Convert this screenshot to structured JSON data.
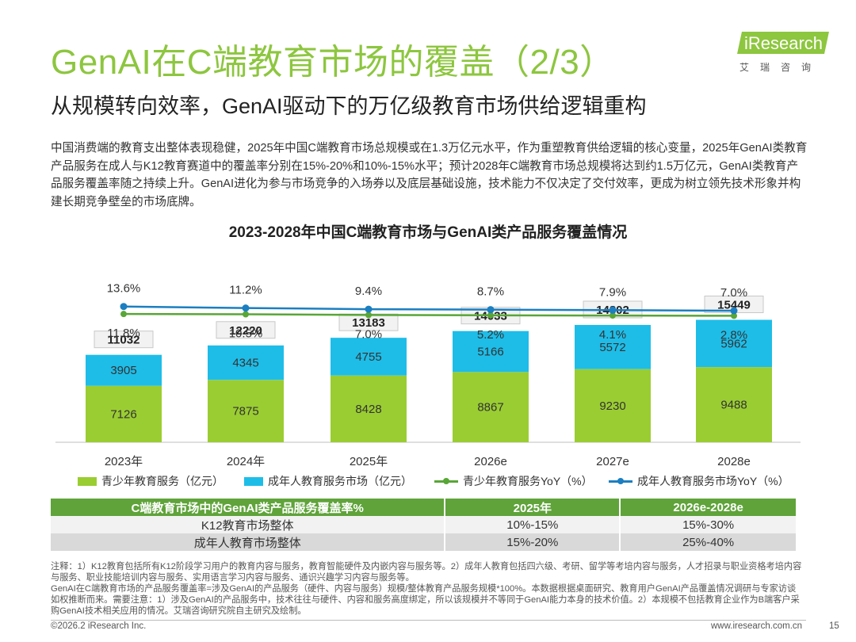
{
  "header": {
    "title": "GenAI在C端教育市场的覆盖（2/3）",
    "subtitle": "从规模转向效率，GenAI驱动下的万亿级教育市场供给逻辑重构"
  },
  "logo": {
    "text_i": "i",
    "text_main": "Research",
    "sub": "艾瑞咨询"
  },
  "body_text": "中国消费端的教育支出整体表现稳健，2025年中国C端教育市场总规模或在1.3万亿元水平，作为重塑教育供给逻辑的核心变量，2025年GenAI类教育产品服务在成人与K12教育赛道中的覆盖率分别在15%-20%和10%-15%水平；预计2028年C端教育市场总规模将达到约1.5万亿元，GenAI类教育产品服务覆盖率随之持续上升。GenAI进化为参与市场竞争的入场券以及底层基础设施，技术能力不仅决定了交付效率，更成为树立领先技术形象并构建长期竞争壁垒的市场底牌。",
  "chart_data": {
    "type": "bar",
    "title": "2023-2028年中国C端教育市场与GenAI类产品服务覆盖情况",
    "categories": [
      "2023年",
      "2024年",
      "2025年",
      "2026e",
      "2027e",
      "2028e"
    ],
    "series": [
      {
        "name": "青少年教育服务（亿元）",
        "kind": "bar",
        "color": "#9acd32",
        "values": [
          7126,
          7875,
          8428,
          8867,
          9230,
          9488
        ]
      },
      {
        "name": "成年人教育服务市场（亿元）",
        "kind": "bar",
        "color": "#1ebde8",
        "values": [
          3905,
          4345,
          4755,
          5166,
          5572,
          5962
        ]
      },
      {
        "name": "青少年教育服务YoY（%）",
        "kind": "line",
        "color": "#58a637",
        "values": [
          11.8,
          10.5,
          7.0,
          5.2,
          4.1,
          2.8
        ],
        "labels": [
          "11.8%",
          "10.5%",
          "7.0%",
          "5.2%",
          "4.1%",
          "2.8%"
        ]
      },
      {
        "name": "成年人教育服务市场YoY（%）",
        "kind": "line",
        "color": "#1b7fc1",
        "values": [
          13.6,
          11.2,
          9.4,
          8.7,
          7.9,
          7.0
        ],
        "labels": [
          "13.6%",
          "11.2%",
          "9.4%",
          "8.7%",
          "7.9%",
          "7.0%"
        ]
      }
    ],
    "totals": [
      11032,
      12220,
      13183,
      14033,
      14802,
      15449
    ],
    "total_labels": [
      "11032",
      "12220",
      "13183",
      "14033",
      "14802",
      "15449"
    ],
    "bar_labels_youth": [
      "7126",
      "7875",
      "8428",
      "8867",
      "9230",
      "9488"
    ],
    "bar_labels_adult": [
      "3905",
      "4345",
      "4755",
      "5166",
      "5572",
      "5962"
    ],
    "ylim": [
      0,
      16000
    ],
    "legend": [
      "青少年教育服务（亿元）",
      "成年人教育服务市场（亿元）",
      "青少年教育服务YoY（%）",
      "成年人教育服务市场YoY（%）"
    ]
  },
  "coverage_table": {
    "headers": [
      "C端教育市场中的GenAI类产品服务覆盖率%",
      "2025年",
      "2026e-2028e"
    ],
    "rows": [
      [
        "K12教育市场整体",
        "10%-15%",
        "15%-30%"
      ],
      [
        "成年人教育市场整体",
        "15%-20%",
        "25%-40%"
      ]
    ]
  },
  "notes": [
    "注释：1）K12教育包括所有K12阶段学习用户的教育内容与服务，教育智能硬件及内嵌内容与服务等。2）成年人教育包括四六级、考研、留学等考培内容与服务，人才招录与职业资格考培内容与服务、职业技能培训内容与服务、实用语言学习内容与服务、通识兴趣学习内容与服务等。",
    "GenAI在C端教育市场的产品服务覆盖率=涉及GenAI的产品服务（硬件、内容与服务）规模/整体教育产品服务规模*100%。本数据根据桌面研究、教育用户GenAI产品覆盖情况调研与专家访谈如权推断而来。需要注意：1）涉及GenAI的产品服务中，技术往往与硬件、内容和服务高度绑定，所以该规模并不等同于GenAI能力本身的技术价值。2）本规模不包括教育企业作为B端客户采购GenAI技术相关应用的情况。艾瑞咨询研究院自主研究及绘制。"
  ],
  "footer": {
    "left": "©2026.2 iResearch Inc.",
    "right": "www.iresearch.com.cn",
    "page": "15"
  }
}
